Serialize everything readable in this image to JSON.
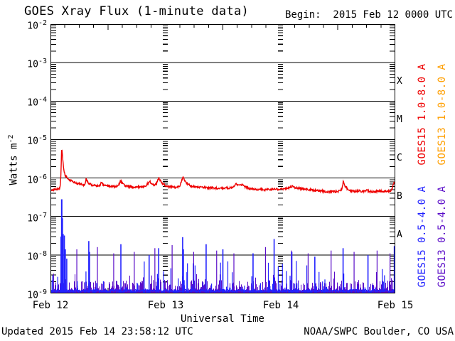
{
  "header": {
    "title": "GOES Xray Flux (1-minute data)",
    "begin": "Begin:  2015 Feb 12 0000 UTC"
  },
  "axis": {
    "y_base": "10",
    "y_exps": [
      "-2",
      "-3",
      "-4",
      "-5",
      "-6",
      "-7",
      "-8",
      "-9"
    ],
    "ylabel_base": "Watts m",
    "ylabel_exp": "-2",
    "xlabel": "Universal Time",
    "x_ticks": [
      "Feb 12",
      "Feb 13",
      "Feb 14",
      "Feb 15"
    ],
    "class_labels": [
      "X",
      "M",
      "C",
      "B",
      "A"
    ]
  },
  "legend": {
    "items": [
      {
        "label": "GOES15 1.0-8.0 A",
        "color": "#ee0000"
      },
      {
        "label": "GOES13 1.0-8.0 A",
        "color": "#ff9f00"
      },
      {
        "label": "GOES15 0.5-4.0 A",
        "color": "#2222ff"
      },
      {
        "label": "GOES13 0.5-4.0 A",
        "color": "#5a0dc8"
      }
    ]
  },
  "footer": {
    "updated": "Updated 2015 Feb 14 23:58:12 UTC",
    "source": "NOAA/SWPC Boulder, CO USA"
  },
  "chart_data": {
    "type": "line",
    "title": "GOES Xray Flux (1-minute data)",
    "xlabel": "Universal Time",
    "ylabel": "Watts m^-2",
    "x_hours_range": [
      0,
      72
    ],
    "x_day_labels": [
      "Feb 12",
      "Feb 13",
      "Feb 14",
      "Feb 15"
    ],
    "y_log10_range": [
      -9,
      -2
    ],
    "grid": {
      "horizontal_decades": true,
      "minor_log_ticks": true,
      "day_tick_columns_hours": [
        24,
        48
      ],
      "hour_tick_interval": 3
    },
    "flare_class_bands": {
      "A": [
        1e-08,
        1e-07
      ],
      "B": [
        1e-07,
        1e-06
      ],
      "C": [
        1e-06,
        1e-05
      ],
      "M": [
        1e-05,
        0.0001
      ],
      "X": [
        0.0001,
        0.001
      ]
    },
    "series": [
      {
        "name": "GOES15 1.0-8.0 A",
        "color": "#ee0000",
        "style": "continuous",
        "points": [
          [
            0,
            4.8e-07
          ],
          [
            0.4,
            5e-07
          ],
          [
            0.9,
            5.1e-07
          ],
          [
            1.4,
            5e-07
          ],
          [
            1.9,
            5.4e-07
          ],
          [
            2.1,
            7e-07
          ],
          [
            2.35,
            6.5e-06
          ],
          [
            2.55,
            3.2e-06
          ],
          [
            2.8,
            1.5e-06
          ],
          [
            3.1,
            1.15e-06
          ],
          [
            3.6,
            9.8e-07
          ],
          [
            4.2,
            8.6e-07
          ],
          [
            4.8,
            8e-07
          ],
          [
            5.4,
            7.4e-07
          ],
          [
            6.1,
            7e-07
          ],
          [
            6.8,
            6.6e-07
          ],
          [
            7.2,
            6.8e-07
          ],
          [
            7.45,
            9.6e-07
          ],
          [
            7.8,
            7.6e-07
          ],
          [
            8.3,
            6.9e-07
          ],
          [
            9.0,
            6.4e-07
          ],
          [
            9.7,
            6.2e-07
          ],
          [
            10.3,
            6.3e-07
          ],
          [
            10.6,
            7.9e-07
          ],
          [
            11.0,
            6.7e-07
          ],
          [
            11.6,
            6.3e-07
          ],
          [
            12.3,
            6.1e-07
          ],
          [
            13.1,
            6e-07
          ],
          [
            14.0,
            6.2e-07
          ],
          [
            14.65,
            8.3e-07
          ],
          [
            15.3,
            6.6e-07
          ],
          [
            16.1,
            6.1e-07
          ],
          [
            17.0,
            5.9e-07
          ],
          [
            18.0,
            5.8e-07
          ],
          [
            19.0,
            5.8e-07
          ],
          [
            20.0,
            6.1e-07
          ],
          [
            20.65,
            8.4e-07
          ],
          [
            21.3,
            6.6e-07
          ],
          [
            22.0,
            6.7e-07
          ],
          [
            22.65,
            1e-06
          ],
          [
            23.3,
            7.3e-07
          ],
          [
            24.1,
            6.3e-07
          ],
          [
            25.0,
            5.9e-07
          ],
          [
            26.0,
            5.7e-07
          ],
          [
            27.0,
            6.1e-07
          ],
          [
            27.65,
            1.05e-06
          ],
          [
            28.3,
            7.6e-07
          ],
          [
            29.1,
            6.4e-07
          ],
          [
            30.0,
            6e-07
          ],
          [
            31.0,
            5.8e-07
          ],
          [
            32.0,
            5.7e-07
          ],
          [
            33.0,
            5.6e-07
          ],
          [
            34.0,
            5.5e-07
          ],
          [
            35.0,
            5.4e-07
          ],
          [
            36.0,
            5.6e-07
          ],
          [
            37.0,
            5.5e-07
          ],
          [
            38.0,
            5.7e-07
          ],
          [
            38.65,
            7e-07
          ],
          [
            39.3,
            6.3e-07
          ],
          [
            39.9,
            6.8e-07
          ],
          [
            40.6,
            5.9e-07
          ],
          [
            41.6,
            5.3e-07
          ],
          [
            42.7,
            5.1e-07
          ],
          [
            44.0,
            5e-07
          ],
          [
            45.2,
            5e-07
          ],
          [
            46.4,
            5.1e-07
          ],
          [
            47.6,
            5.1e-07
          ],
          [
            48.8,
            5.2e-07
          ],
          [
            50.0,
            5.6e-07
          ],
          [
            50.5,
            6.3e-07
          ],
          [
            51.2,
            5.6e-07
          ],
          [
            52.3,
            5.3e-07
          ],
          [
            53.5,
            5.1e-07
          ],
          [
            54.7,
            4.9e-07
          ],
          [
            55.9,
            4.7e-07
          ],
          [
            57.1,
            4.5e-07
          ],
          [
            58.3,
            4.4e-07
          ],
          [
            59.5,
            4.4e-07
          ],
          [
            60.4,
            4.6e-07
          ],
          [
            60.9,
            5.2e-07
          ],
          [
            61.15,
            8.6e-07
          ],
          [
            61.6,
            5.8e-07
          ],
          [
            62.4,
            4.8e-07
          ],
          [
            63.4,
            4.5e-07
          ],
          [
            64.4,
            4.6e-07
          ],
          [
            65.4,
            4.5e-07
          ],
          [
            66.0,
            4.8e-07
          ],
          [
            66.6,
            4.5e-07
          ],
          [
            67.6,
            4.4e-07
          ],
          [
            68.6,
            4.6e-07
          ],
          [
            69.6,
            4.5e-07
          ],
          [
            70.6,
            4.6e-07
          ],
          [
            71.3,
            4.8e-07
          ],
          [
            71.75,
            8e-07
          ],
          [
            72,
            7.2e-07
          ]
        ]
      },
      {
        "name": "GOES13 1.0-8.0 A",
        "color": "#ff9f00",
        "style": "continuous",
        "points": []
      },
      {
        "name": "GOES15 0.5-4.0 A",
        "color": "#2222ff",
        "style": "spiky",
        "baseline_flux": 1.15e-09,
        "spikes": [
          [
            2.2,
            3e-08
          ],
          [
            2.35,
            2.8e-07
          ],
          [
            2.5,
            9e-08
          ],
          [
            2.65,
            3.5e-08
          ],
          [
            2.9,
            3.2e-08
          ],
          [
            3.1,
            1.4e-08
          ],
          [
            3.4,
            8e-09
          ],
          [
            8.0,
            2.3e-08
          ],
          [
            8.15,
            1.2e-08
          ],
          [
            14.7,
            1.9e-08
          ],
          [
            20.6,
            1e-08
          ],
          [
            22.6,
            1.5e-08
          ],
          [
            27.6,
            2.9e-08
          ],
          [
            27.75,
            1.4e-08
          ],
          [
            32.5,
            1.9e-08
          ],
          [
            36.0,
            1.4e-08
          ],
          [
            42.3,
            1.1e-08
          ],
          [
            46.7,
            2.6e-08
          ],
          [
            50.4,
            1.2e-08
          ],
          [
            55.2,
            9e-09
          ],
          [
            61.1,
            1.5e-08
          ],
          [
            66.3,
            1e-08
          ],
          [
            71.8,
            1.7e-08
          ]
        ]
      },
      {
        "name": "GOES13 0.5-4.0 A",
        "color": "#5a0dc8",
        "style": "noise-band",
        "band_flux_range": [
          1e-09,
          8e-09
        ],
        "spikes": [
          [
            5.5,
            1.4e-08
          ],
          [
            9.8,
            1.6e-08
          ],
          [
            13.2,
            1.1e-08
          ],
          [
            17.5,
            1.2e-08
          ],
          [
            21.8,
            1.5e-08
          ],
          [
            25.4,
            1.8e-08
          ],
          [
            29.9,
            1.2e-08
          ],
          [
            34.7,
            1.3e-08
          ],
          [
            38.3,
            1.1e-08
          ],
          [
            44.9,
            1.6e-08
          ],
          [
            50.3,
            1.3e-08
          ],
          [
            53.8,
            1.1e-08
          ],
          [
            58.6,
            1.3e-08
          ],
          [
            63.4,
            1.2e-08
          ],
          [
            68.2,
            1.3e-08
          ],
          [
            70.9,
            1.1e-08
          ]
        ]
      }
    ],
    "noise": {
      "seed": 1337,
      "columns": 485
    }
  }
}
